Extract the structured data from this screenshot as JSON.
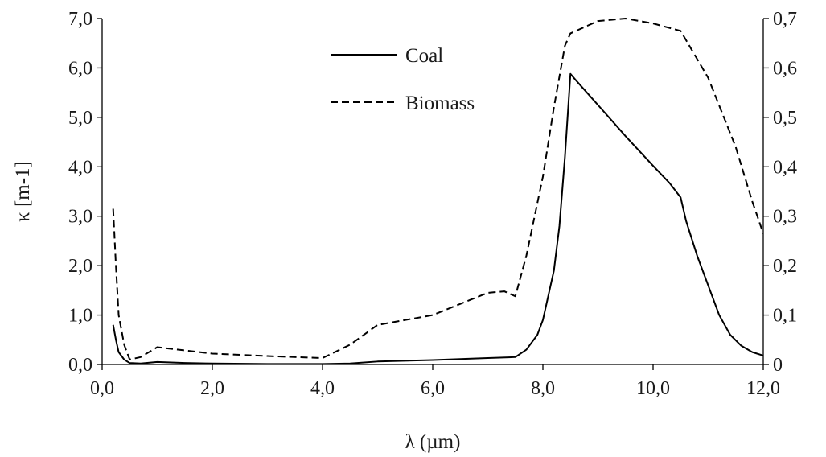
{
  "chart_data": {
    "type": "line",
    "title": "",
    "xlabel": "λ (µm)",
    "ylabel": "κ [m-1]",
    "xlim": [
      0,
      12
    ],
    "ylim": [
      0,
      7
    ],
    "y2lim": [
      0,
      0.7
    ],
    "x_ticks": [
      "0,0",
      "2,0",
      "4,0",
      "6,0",
      "8,0",
      "10,0",
      "12,0"
    ],
    "y_ticks": [
      "0,0",
      "1,0",
      "2,0",
      "3,0",
      "4,0",
      "5,0",
      "6,0",
      "7,0"
    ],
    "y2_ticks": [
      "0",
      "0,1",
      "0,2",
      "0,3",
      "0,4",
      "0,5",
      "0,6",
      "0,7"
    ],
    "grid": false,
    "legend_position": "top-center",
    "series": [
      {
        "name": "Coal",
        "style": "solid",
        "axis": "left",
        "color": "#000000",
        "points": [
          [
            0.2,
            0.8
          ],
          [
            0.25,
            0.5
          ],
          [
            0.3,
            0.25
          ],
          [
            0.4,
            0.1
          ],
          [
            0.5,
            0.03
          ],
          [
            0.7,
            0.02
          ],
          [
            1.0,
            0.05
          ],
          [
            1.5,
            0.03
          ],
          [
            2.0,
            0.02
          ],
          [
            3.0,
            0.01
          ],
          [
            4.0,
            0.01
          ],
          [
            4.5,
            0.02
          ],
          [
            5.0,
            0.06
          ],
          [
            6.0,
            0.09
          ],
          [
            7.0,
            0.13
          ],
          [
            7.5,
            0.15
          ],
          [
            7.7,
            0.3
          ],
          [
            7.9,
            0.6
          ],
          [
            8.0,
            0.9
          ],
          [
            8.2,
            1.9
          ],
          [
            8.3,
            2.8
          ],
          [
            8.4,
            4.2
          ],
          [
            8.5,
            5.88
          ],
          [
            8.6,
            5.75
          ],
          [
            9.0,
            5.25
          ],
          [
            9.5,
            4.62
          ],
          [
            10.0,
            4.02
          ],
          [
            10.3,
            3.67
          ],
          [
            10.5,
            3.38
          ],
          [
            10.6,
            2.9
          ],
          [
            10.8,
            2.2
          ],
          [
            11.0,
            1.6
          ],
          [
            11.2,
            1.0
          ],
          [
            11.4,
            0.6
          ],
          [
            11.6,
            0.38
          ],
          [
            11.8,
            0.25
          ],
          [
            12.0,
            0.18
          ]
        ]
      },
      {
        "name": "Biomass",
        "style": "dashed",
        "axis": "right",
        "color": "#000000",
        "points": [
          [
            0.2,
            0.315
          ],
          [
            0.25,
            0.2
          ],
          [
            0.3,
            0.1
          ],
          [
            0.4,
            0.04
          ],
          [
            0.5,
            0.01
          ],
          [
            0.7,
            0.015
          ],
          [
            1.0,
            0.035
          ],
          [
            2.0,
            0.022
          ],
          [
            3.0,
            0.017
          ],
          [
            4.0,
            0.013
          ],
          [
            4.5,
            0.04
          ],
          [
            5.0,
            0.08
          ],
          [
            6.0,
            0.1
          ],
          [
            7.0,
            0.145
          ],
          [
            7.3,
            0.148
          ],
          [
            7.5,
            0.138
          ],
          [
            7.7,
            0.22
          ],
          [
            8.0,
            0.38
          ],
          [
            8.2,
            0.52
          ],
          [
            8.4,
            0.645
          ],
          [
            8.5,
            0.67
          ],
          [
            9.0,
            0.695
          ],
          [
            9.5,
            0.7
          ],
          [
            10.0,
            0.69
          ],
          [
            10.5,
            0.675
          ],
          [
            11.0,
            0.58
          ],
          [
            11.5,
            0.44
          ],
          [
            11.8,
            0.33
          ],
          [
            12.0,
            0.265
          ]
        ]
      }
    ]
  }
}
